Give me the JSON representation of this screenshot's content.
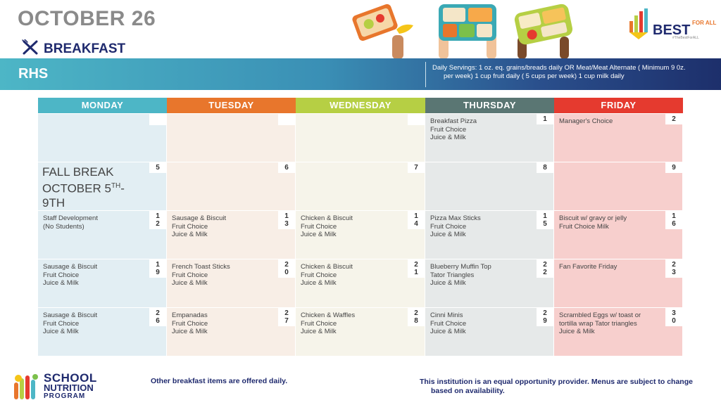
{
  "header": {
    "title": "OCTOBER 26",
    "meal_label": "BREAKFAST",
    "meal_icon": "fork-knife-icon"
  },
  "branding": {
    "best_text": "BEST",
    "for_all": "FOR ALL",
    "tagline": "#TheBestForALL"
  },
  "band": {
    "school": "RHS",
    "servings_line1": "Daily Servings: 1 oz. eq. grains/breads daily OR Meat/Meat Alternate ( Minimum 9 0z.",
    "servings_line2": "per  week)  1 cup fruit daily ( 5 cups per week)    1 cup milk daily"
  },
  "days": [
    {
      "name": "MONDAY",
      "color": "#4db6c6"
    },
    {
      "name": "TUESDAY",
      "color": "#e8762c"
    },
    {
      "name": "WEDNESDAY",
      "color": "#b6cf44"
    },
    {
      "name": "THURSDAY",
      "color": "#5a7673"
    },
    {
      "name": "FRIDAY",
      "color": "#e53a2f"
    }
  ],
  "weeks": [
    [
      {
        "num": "",
        "text": ""
      },
      {
        "num": "",
        "text": ""
      },
      {
        "num": "",
        "text": ""
      },
      {
        "num": "1",
        "text": "Breakfast Pizza\nFruit Choice\n Juice & Milk"
      },
      {
        "num": "2",
        "text": "Manager's Choice"
      }
    ],
    [
      {
        "num": "5",
        "text": "",
        "big_line1": "FALL BREAK",
        "big_line2": "OCTOBER 5",
        "big_sup": "TH",
        "big_line2_end": "-",
        "big_line3": "9TH"
      },
      {
        "num": "6",
        "text": ""
      },
      {
        "num": "7",
        "text": ""
      },
      {
        "num": "8",
        "text": ""
      },
      {
        "num": "9",
        "text": ""
      }
    ],
    [
      {
        "num": "1\n2",
        "text": "Staff Development\n(No Students)"
      },
      {
        "num": "1\n3",
        "text": "Sausage & Biscuit\nFruit Choice\n Juice & Milk"
      },
      {
        "num": "1\n4",
        "text": "Chicken & Biscuit\n Fruit Choice\nJuice & Milk"
      },
      {
        "num": "1\n5",
        "text": "Pizza Max Sticks\nFruit Choice\nJuice & Milk"
      },
      {
        "num": "1\n6",
        "text": "Biscuit w/ gravy or jelly\nFruit Choice Milk"
      }
    ],
    [
      {
        "num": "1\n9",
        "text": "Sausage & Biscuit\nFruit Choice\n Juice & Milk"
      },
      {
        "num": "2\n0",
        "text": "French Toast Sticks\nFruit Choice\n Juice & Milk"
      },
      {
        "num": "2\n1",
        "text": "Chicken & Biscuit\n Fruit Choice\nJuice & Milk"
      },
      {
        "num": "2\n2",
        "text": "Blueberry Muffin Top\nTator Triangles\nJuice & Milk"
      },
      {
        "num": "2\n3",
        "text": "Fan Favorite Friday"
      }
    ],
    [
      {
        "num": "2\n6",
        "text": "Sausage & Biscuit\nFruit Choice\n Juice & Milk"
      },
      {
        "num": "2\n7",
        "text": "Empanadas\nFruit Choice\nJuice & Milk"
      },
      {
        "num": "2\n8",
        "text": "Chicken & Waffles\n Fruit Choice\nJuice & Milk"
      },
      {
        "num": "2\n9",
        "text": "Cinni Minis\nFruit Choice\nJuice & Milk"
      },
      {
        "num": "3\n0",
        "text": "Scrambled Eggs w/ toast or\ntortilla wrap Tator triangles\nJuice & Milk"
      }
    ]
  ],
  "footer": {
    "snp_school": "SCHOOL",
    "snp_nutrition": "NUTRITION",
    "snp_program": "PROGRAM",
    "note_daily": "Other breakfast items are offered daily.",
    "note_equal_line1": "This institution is an equal opportunity provider. Menus are subject to change",
    "note_equal_line2": "based on availability."
  }
}
